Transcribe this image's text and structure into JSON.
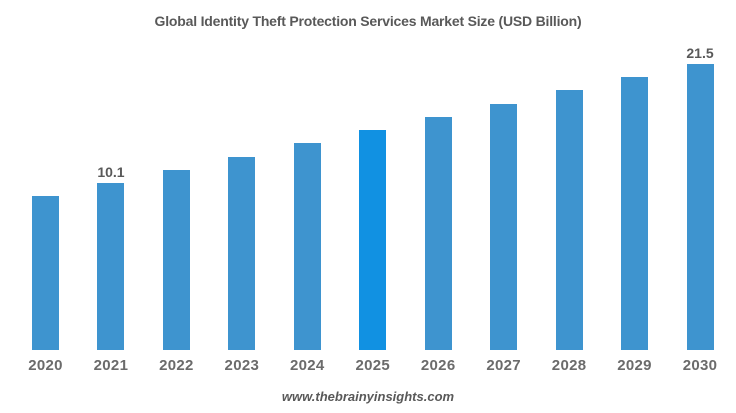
{
  "title": "Global Identity Theft Protection Services Market Size (USD Billion)",
  "watermark": "www.thebrainyinsights.com",
  "colors": {
    "bar": "#3E94CF",
    "bar_highlight": "#1191E2",
    "title_text": "#595959",
    "tick_text": "#6B6B6B",
    "label_text": "#595959",
    "background": "#FFFFFF"
  },
  "chart_data": {
    "type": "bar",
    "title": "Global Identity Theft Protection Services Market Size (USD Billion)",
    "xlabel": "",
    "ylabel": "",
    "categories": [
      "2020",
      "2021",
      "2022",
      "2023",
      "2024",
      "2025",
      "2026",
      "2027",
      "2028",
      "2029",
      "2030"
    ],
    "values": [
      9.3,
      10.1,
      11.0,
      11.9,
      13.0,
      14.1,
      15.4,
      16.7,
      18.2,
      19.8,
      21.5
    ],
    "data_labels": {
      "2021": "10.1",
      "2030": "21.5"
    },
    "highlight_category": "2025",
    "legend": false,
    "grid": false,
    "axes_visible": false,
    "note": "Only the 2021 (10.1) and 2030 (21.5) bars carry visible data labels; other values are estimated from bar heights (~8.8% CAGR)."
  }
}
